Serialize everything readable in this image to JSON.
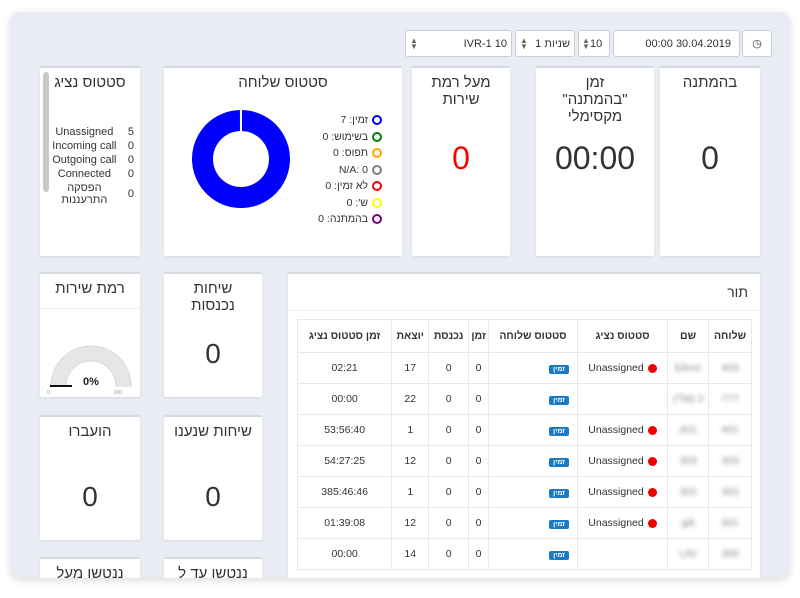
{
  "toolbar": {
    "clock_icon": "clock-icon",
    "datetime": "00:00 30.04.2019",
    "count": "10",
    "interval": "1 שניות",
    "queue": "IVR-1 10"
  },
  "cards": {
    "waiting": {
      "title": "בהמתנה",
      "value": "0"
    },
    "max_wait": {
      "title": "זמן \"בהמתנה\" מקסימלי",
      "value": "00:00"
    },
    "above_sl": {
      "title": "מעל רמת שירות",
      "value": "0",
      "color": "#ff0000"
    },
    "ext_status": {
      "title": "סטטוס שלוחה"
    },
    "agent_status": {
      "title": "סטטוס נציג",
      "rows": [
        {
          "label": "Unassigned",
          "value": "5"
        },
        {
          "label": "Incoming call",
          "value": "0"
        },
        {
          "label": "Outgoing call",
          "value": "0"
        },
        {
          "label": "Connected",
          "value": "0"
        },
        {
          "label": "הפסקה התרעננות",
          "value": "0"
        }
      ]
    },
    "service_level": {
      "title": "רמת שירות",
      "value": "0%",
      "min": "0",
      "max": "100",
      "percent": 0
    },
    "incoming": {
      "title": "שיחות נכנסות",
      "value": "0"
    },
    "answered": {
      "title": "שיחות שנענו",
      "value": "0"
    },
    "transferred": {
      "title": "הועברו",
      "value": "0"
    },
    "abandoned_under": {
      "title": "ננטשו עד ל"
    },
    "abandoned_over": {
      "title": "ננטשו מעל"
    }
  },
  "chart_data": {
    "type": "pie",
    "title": "סטטוס שלוחה",
    "donut": true,
    "categories": [
      "זמין",
      "בשימוש",
      "תפוס",
      "N/A",
      "לא זמין",
      "ש'",
      "בהמתנה"
    ],
    "values": [
      7,
      0,
      0,
      0,
      0,
      0,
      0
    ],
    "labels": [
      "זמין: 7",
      "בשימוש: 0",
      "תפוס: 0",
      "N/A: 0",
      "לא זמין: 0",
      "ש': 0",
      "בהמתנה: 0"
    ],
    "colors": [
      "#0000ff",
      "#008000",
      "#ffa500",
      "#808080",
      "#ff0000",
      "#ffff00",
      "#800080"
    ],
    "legend": "right"
  },
  "queue": {
    "title": "תור",
    "columns": [
      "שלוחה",
      "שם",
      "סטטוס נציג",
      "סטטוס שלוחה",
      "זמן",
      "נכנסת",
      "יוצאת",
      "זמן סטטוס נציג"
    ],
    "rows": [
      [
        "403",
        "Elinor",
        "Unassigned",
        "זמין",
        "0",
        "0",
        "17",
        "02:21"
      ],
      [
        "777",
        "3 (אלי)",
        "",
        "זמין",
        "0",
        "0",
        "22",
        "00:00"
      ],
      [
        "401",
        "401",
        "Unassigned",
        "זמין",
        "0",
        "0",
        "1",
        "53:56:40"
      ],
      [
        "303",
        "303",
        "Unassigned",
        "זמין",
        "0",
        "0",
        "12",
        "54:27:25"
      ],
      [
        "302",
        "302",
        "Unassigned",
        "זמין",
        "0",
        "0",
        "1",
        "385:46:46"
      ],
      [
        "301",
        "gili",
        "Unassigned",
        "זמין",
        "0",
        "0",
        "12",
        "01:39:08"
      ],
      [
        "300",
        "Lihi",
        "",
        "זמין",
        "0",
        "0",
        "14",
        "00:00"
      ]
    ]
  }
}
